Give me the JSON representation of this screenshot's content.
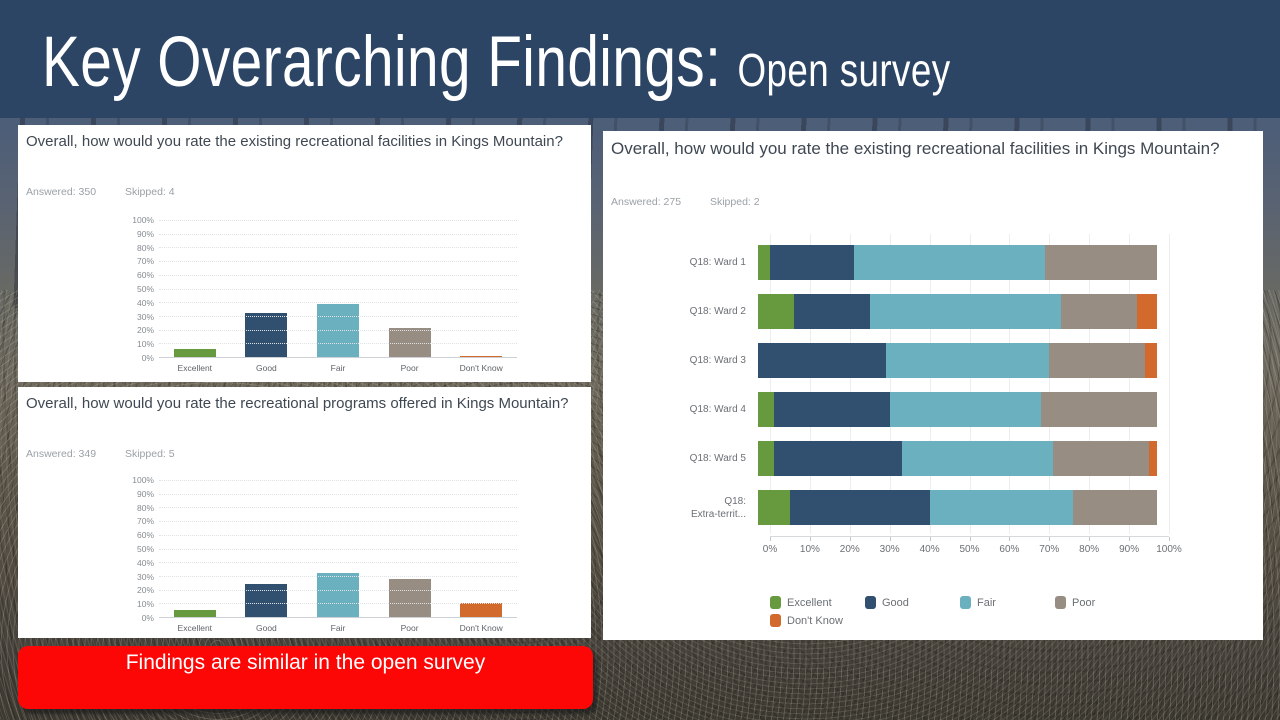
{
  "slide": {
    "title_main": "Key Overarching Findings:",
    "title_sub": "Open survey",
    "banner_text": "Findings are similar in the open survey"
  },
  "colors": {
    "header_bg": "#2c4565",
    "banner_red": "#fc0606",
    "excellent": "#67993f",
    "good": "#31506f",
    "fair": "#6bb0bf",
    "poor": "#978d82",
    "dont_know": "#d2692d"
  },
  "chart_data": [
    {
      "type": "bar",
      "title": "Overall, how would you rate the existing recreational facilities in Kings Mountain?",
      "answered_label": "Answered: 350",
      "skipped_label": "Skipped: 4",
      "categories": [
        "Excellent",
        "Good",
        "Fair",
        "Poor",
        "Don't Know"
      ],
      "values": [
        6,
        32,
        39,
        21,
        1
      ],
      "series_colors": [
        "excellent",
        "good",
        "fair",
        "poor",
        "dont_know"
      ],
      "ylabel": "",
      "xlabel": "",
      "ylim": [
        0,
        100
      ],
      "yticks": [
        "100%",
        "90%",
        "80%",
        "70%",
        "60%",
        "50%",
        "40%",
        "30%",
        "20%",
        "10%",
        "0%"
      ],
      "grid": true,
      "legend_position": "none"
    },
    {
      "type": "bar",
      "title": "Overall, how would you rate the recreational programs offered in Kings Mountain?",
      "answered_label": "Answered: 349",
      "skipped_label": "Skipped: 5",
      "categories": [
        "Excellent",
        "Good",
        "Fair",
        "Poor",
        "Don't Know"
      ],
      "values": [
        5,
        24,
        32,
        28,
        10
      ],
      "series_colors": [
        "excellent",
        "good",
        "fair",
        "poor",
        "dont_know"
      ],
      "ylabel": "",
      "xlabel": "",
      "ylim": [
        0,
        100
      ],
      "yticks": [
        "100%",
        "90%",
        "80%",
        "70%",
        "60%",
        "50%",
        "40%",
        "30%",
        "20%",
        "10%",
        "0%"
      ],
      "grid": true,
      "legend_position": "none"
    },
    {
      "type": "stacked-bar-horizontal",
      "title": "Overall, how would you rate the existing recreational facilities in Kings Mountain?",
      "answered_label": "Answered: 275",
      "skipped_label": "Skipped: 2",
      "categories": [
        "Q18: Ward 1",
        "Q18: Ward 2",
        "Q18: Ward 3",
        "Q18: Ward 4",
        "Q18: Ward 5",
        "Q18:\nExtra-territ..."
      ],
      "series": [
        {
          "name": "Excellent",
          "color_key": "excellent",
          "values": [
            3,
            9,
            0,
            4,
            4,
            8
          ]
        },
        {
          "name": "Good",
          "color_key": "good",
          "values": [
            21,
            19,
            32,
            29,
            32,
            35
          ]
        },
        {
          "name": "Fair",
          "color_key": "fair",
          "values": [
            48,
            48,
            41,
            38,
            38,
            36
          ]
        },
        {
          "name": "Poor",
          "color_key": "poor",
          "values": [
            28,
            19,
            24,
            29,
            24,
            21
          ]
        },
        {
          "name": "Don't Know",
          "color_key": "dont_know",
          "values": [
            0,
            5,
            3,
            0,
            2,
            0
          ]
        }
      ],
      "xlim": [
        0,
        100
      ],
      "xticks": [
        "0%",
        "10%",
        "20%",
        "30%",
        "40%",
        "50%",
        "60%",
        "70%",
        "80%",
        "90%",
        "100%"
      ],
      "grid": true,
      "legend_position": "bottom"
    }
  ]
}
